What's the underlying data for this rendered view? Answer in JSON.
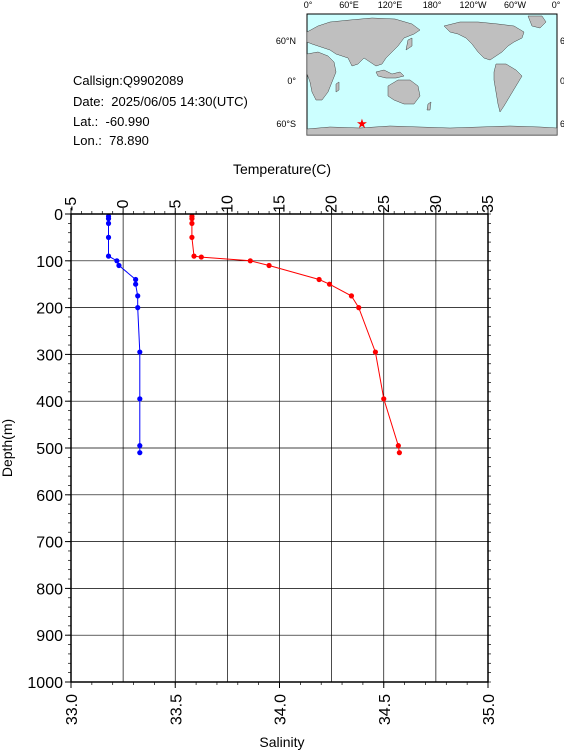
{
  "info": {
    "callsign": "Callsign:Q9902089",
    "date": "Date:  2025/06/05 14:30(UTC)",
    "lat": "Lat.:  -60.990",
    "lon": "Lon.:  78.890"
  },
  "map": {
    "lon_labels": [
      "0°",
      "60°E",
      "120°E",
      "180°",
      "120°W",
      "60°W",
      "0°"
    ],
    "lat_labels": [
      "60°N",
      "0°",
      "60°S"
    ],
    "station": {
      "lon": 78.89,
      "lat": -60.99
    },
    "ocean_color": "#ccffff",
    "land_color": "#bfbfbf",
    "marker_color": "#ff0000"
  },
  "chart_data": {
    "type": "line",
    "ylabel": "Depth(m)",
    "ylim": [
      1000,
      0
    ],
    "yticks": [
      "0",
      "100",
      "200",
      "300",
      "400",
      "500",
      "600",
      "700",
      "800",
      "900",
      "1000"
    ],
    "temperature_axis": {
      "label": "Temperature(C)",
      "range": [
        -5,
        35
      ],
      "ticks": [
        "-5",
        "0",
        "5",
        "10",
        "15",
        "20",
        "25",
        "30",
        "35"
      ]
    },
    "salinity_axis": {
      "label": "Salinity",
      "range": [
        33.0,
        35.0
      ],
      "ticks": [
        "33.0",
        "33.5",
        "34.0",
        "34.5",
        "35.0"
      ]
    },
    "grid": true,
    "series": [
      {
        "name": "Temperature(C)",
        "axis": "temperature",
        "color": "#ff0000",
        "depth": [
          5,
          10,
          20,
          50,
          90,
          92,
          100,
          110,
          140,
          150,
          175,
          200,
          295,
          395,
          495,
          510
        ],
        "values": [
          6.6,
          6.6,
          6.6,
          6.6,
          6.8,
          7.5,
          12.2,
          14.0,
          18.8,
          19.8,
          21.9,
          22.6,
          24.2,
          25.0,
          26.4,
          26.5
        ]
      },
      {
        "name": "Salinity",
        "axis": "salinity",
        "color": "#0000ff",
        "depth": [
          5,
          10,
          20,
          50,
          90,
          100,
          110,
          140,
          150,
          175,
          200,
          295,
          395,
          495,
          510
        ],
        "values": [
          33.18,
          33.18,
          33.18,
          33.18,
          33.18,
          33.22,
          33.23,
          33.31,
          33.31,
          33.32,
          33.32,
          33.33,
          33.33,
          33.33,
          33.33
        ]
      }
    ]
  }
}
